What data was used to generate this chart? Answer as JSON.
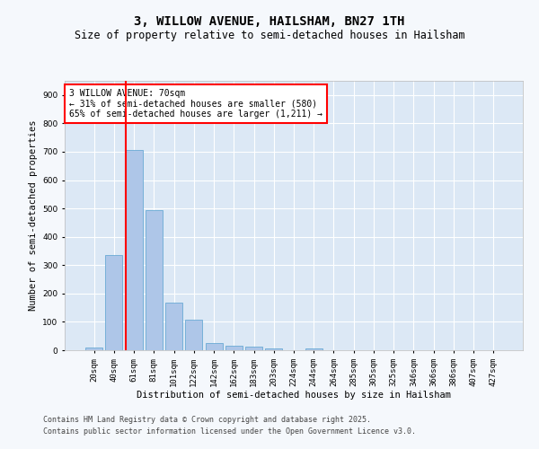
{
  "title1": "3, WILLOW AVENUE, HAILSHAM, BN27 1TH",
  "title2": "Size of property relative to semi-detached houses in Hailsham",
  "xlabel": "Distribution of semi-detached houses by size in Hailsham",
  "ylabel": "Number of semi-detached properties",
  "categories": [
    "20sqm",
    "40sqm",
    "61sqm",
    "81sqm",
    "101sqm",
    "122sqm",
    "142sqm",
    "162sqm",
    "183sqm",
    "203sqm",
    "224sqm",
    "244sqm",
    "264sqm",
    "285sqm",
    "305sqm",
    "325sqm",
    "346sqm",
    "366sqm",
    "386sqm",
    "407sqm",
    "427sqm"
  ],
  "values": [
    10,
    335,
    705,
    493,
    168,
    107,
    25,
    17,
    13,
    5,
    0,
    5,
    0,
    0,
    0,
    0,
    0,
    0,
    0,
    0,
    0
  ],
  "bar_color": "#aec6e8",
  "bar_edge_color": "#6aaad4",
  "vline_color": "red",
  "annotation_title": "3 WILLOW AVENUE: 70sqm",
  "annotation_line1": "← 31% of semi-detached houses are smaller (580)",
  "annotation_line2": "65% of semi-detached houses are larger (1,211) →",
  "ylim": [
    0,
    950
  ],
  "yticks": [
    0,
    100,
    200,
    300,
    400,
    500,
    600,
    700,
    800,
    900
  ],
  "footer1": "Contains HM Land Registry data © Crown copyright and database right 2025.",
  "footer2": "Contains public sector information licensed under the Open Government Licence v3.0.",
  "bg_color": "#dce8f5",
  "fig_bg_color": "#f5f8fc",
  "grid_color": "#ffffff",
  "title_fontsize": 10,
  "subtitle_fontsize": 8.5,
  "axis_label_fontsize": 7.5,
  "tick_fontsize": 6.5,
  "footer_fontsize": 6.0,
  "ann_fontsize": 7.0
}
